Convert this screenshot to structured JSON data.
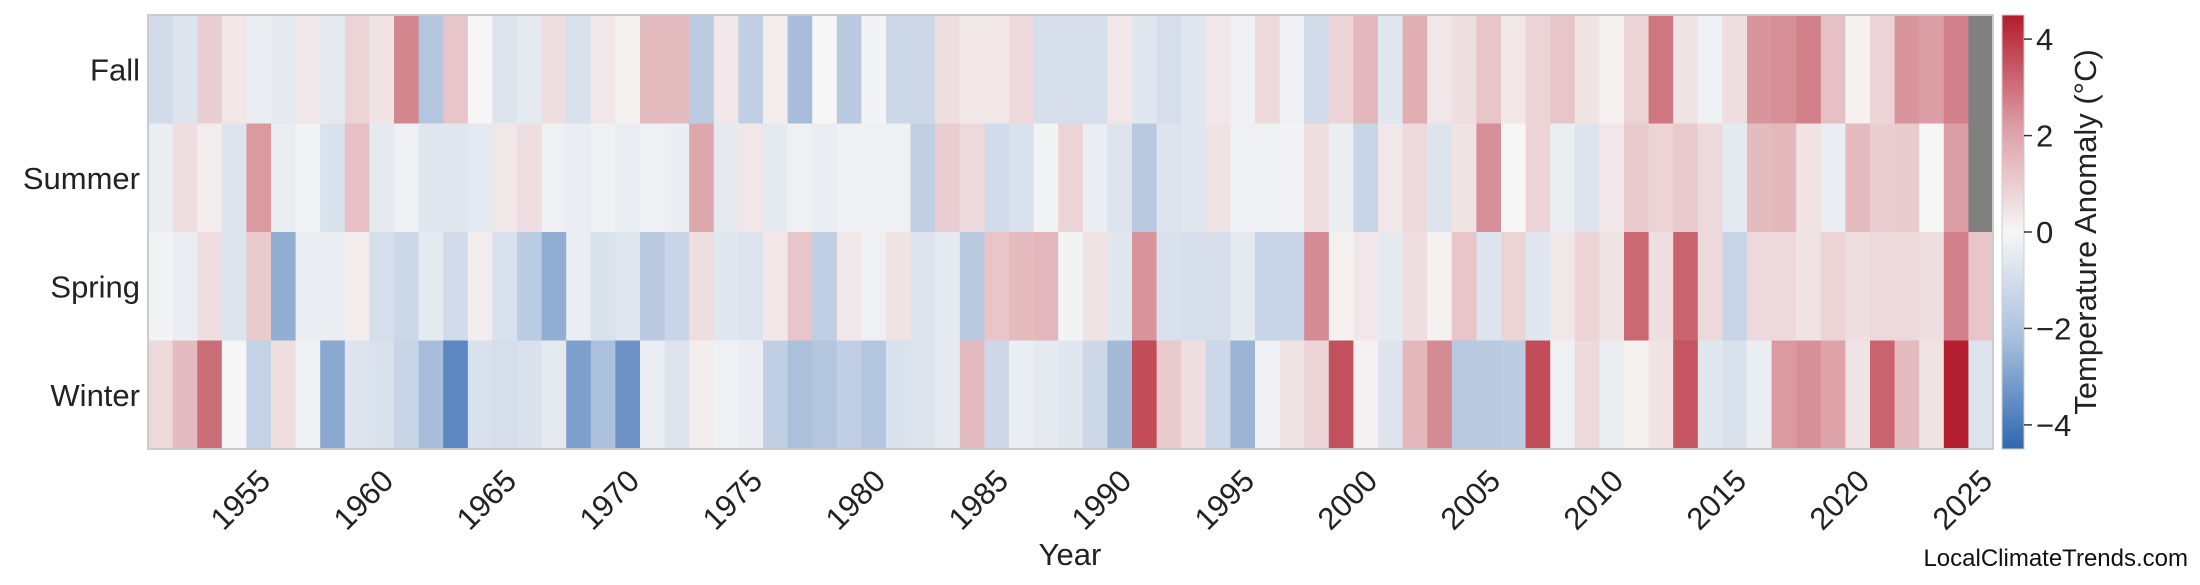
{
  "chart_data": {
    "type": "heatmap",
    "title": "",
    "xlabel": "Year",
    "ylabel": "",
    "x": [
      1951,
      1952,
      1953,
      1954,
      1955,
      1956,
      1957,
      1958,
      1959,
      1960,
      1961,
      1962,
      1963,
      1964,
      1965,
      1966,
      1967,
      1968,
      1969,
      1970,
      1971,
      1972,
      1973,
      1974,
      1975,
      1976,
      1977,
      1978,
      1979,
      1980,
      1981,
      1982,
      1983,
      1984,
      1985,
      1986,
      1987,
      1988,
      1989,
      1990,
      1991,
      1992,
      1993,
      1994,
      1995,
      1996,
      1997,
      1998,
      1999,
      2000,
      2001,
      2002,
      2003,
      2004,
      2005,
      2006,
      2007,
      2008,
      2009,
      2010,
      2011,
      2012,
      2013,
      2014,
      2015,
      2016,
      2017,
      2018,
      2019,
      2020,
      2021,
      2022,
      2023,
      2024,
      2025
    ],
    "x_ticks": [
      "1955",
      "1960",
      "1965",
      "1970",
      "1975",
      "1980",
      "1985",
      "1990",
      "1995",
      "2000",
      "2005",
      "2010",
      "2015",
      "2020",
      "2025"
    ],
    "rows": [
      "Fall",
      "Summer",
      "Spring",
      "Winter"
    ],
    "values": [
      [
        -0.9,
        -0.6,
        0.8,
        0.3,
        -0.3,
        -0.4,
        0.3,
        -0.4,
        0.7,
        0.4,
        2.3,
        -1.6,
        1.0,
        0.0,
        -0.6,
        -0.4,
        0.5,
        -0.7,
        0.3,
        0.1,
        1.2,
        1.2,
        -1.4,
        0.3,
        -1.3,
        0.2,
        -1.9,
        0.0,
        -1.5,
        -0.1,
        -1.0,
        -1.0,
        0.5,
        0.3,
        0.3,
        0.6,
        -0.8,
        -0.8,
        -0.8,
        0.3,
        -0.5,
        -0.8,
        -0.5,
        0.3,
        -0.2,
        0.6,
        -0.2,
        -0.9,
        0.7,
        1.3,
        -0.5,
        1.5,
        0.3,
        0.5,
        1.0,
        0.3,
        0.7,
        1.0,
        0.4,
        0.1,
        0.7,
        2.6,
        0.4,
        -0.2,
        0.5,
        2.0,
        2.1,
        2.4,
        1.1,
        0.1,
        0.7,
        2.0,
        1.8,
        2.4,
        null
      ],
      [
        -0.3,
        0.5,
        0.2,
        -0.6,
        1.9,
        -0.3,
        -0.1,
        -0.7,
        1.1,
        -0.4,
        -0.2,
        -0.5,
        -0.5,
        -0.4,
        0.3,
        0.5,
        -0.2,
        -0.3,
        -0.2,
        -0.3,
        -0.2,
        -0.3,
        1.6,
        -0.4,
        0.3,
        -0.4,
        -0.2,
        -0.3,
        -0.2,
        -0.2,
        -0.2,
        -1.3,
        0.8,
        0.6,
        -0.9,
        -0.7,
        -0.1,
        0.7,
        -0.3,
        -0.6,
        -1.5,
        -0.6,
        -0.5,
        0.4,
        -0.2,
        -0.2,
        -0.1,
        0.5,
        -0.3,
        -1.1,
        0.3,
        0.6,
        -0.6,
        0.4,
        2.1,
        0.0,
        0.7,
        -0.3,
        -0.6,
        0.3,
        0.9,
        0.7,
        0.9,
        0.6,
        -0.4,
        1.2,
        1.3,
        0.4,
        -0.3,
        1.2,
        0.8,
        0.9,
        0.0,
        1.8,
        null
      ],
      [
        -0.1,
        -0.3,
        0.5,
        -0.6,
        0.9,
        -2.4,
        -0.3,
        -0.3,
        0.2,
        -0.8,
        -1.0,
        -0.4,
        -0.9,
        0.2,
        -0.7,
        -1.4,
        -2.4,
        -0.3,
        -0.7,
        -0.5,
        -1.5,
        -1.1,
        0.5,
        -0.5,
        -0.6,
        0.3,
        1.0,
        -1.3,
        0.3,
        -0.2,
        0.4,
        -0.6,
        -0.4,
        -1.5,
        1.0,
        1.2,
        1.3,
        -0.1,
        0.4,
        -0.5,
        2.0,
        -0.7,
        -0.8,
        -0.8,
        -0.4,
        -1.1,
        -1.1,
        2.2,
        0.1,
        0.3,
        -0.4,
        0.5,
        0.1,
        1.0,
        -0.6,
        0.7,
        -0.5,
        0.3,
        0.7,
        0.4,
        2.9,
        0.5,
        3.0,
        0.6,
        -1.1,
        0.6,
        0.6,
        0.4,
        0.7,
        0.5,
        0.6,
        0.6,
        0.5,
        2.4,
        1.0
      ],
      [
        0.6,
        1.2,
        2.8,
        0.0,
        -1.2,
        0.5,
        -0.2,
        -2.6,
        -0.6,
        -0.7,
        -1.1,
        -1.9,
        -3.7,
        -0.7,
        -0.8,
        -0.7,
        -0.4,
        -2.9,
        -1.8,
        -3.3,
        -0.3,
        -0.6,
        0.2,
        -0.2,
        -0.3,
        -1.3,
        -1.8,
        -1.6,
        -1.3,
        -1.6,
        -0.7,
        -0.6,
        -0.4,
        1.2,
        -1.0,
        -0.3,
        -0.4,
        -0.5,
        -1.0,
        -2.0,
        3.5,
        0.9,
        0.5,
        -1.0,
        -2.2,
        -0.2,
        0.4,
        0.7,
        3.4,
        0.1,
        -0.6,
        1.3,
        2.2,
        -1.5,
        -1.5,
        -1.4,
        3.5,
        -0.2,
        0.6,
        -0.3,
        0.1,
        0.4,
        3.3,
        -0.5,
        -0.7,
        -0.3,
        1.9,
        2.1,
        1.7,
        0.4,
        3.0,
        1.2,
        0.4,
        4.4,
        -0.6
      ]
    ],
    "colorbar": {
      "label": "Temperature Anomaly (°C)",
      "ticks": [
        "4",
        "2",
        "0",
        "−2",
        "−4"
      ],
      "min": -4.5,
      "max": 4.5
    },
    "missing_color": "#808080",
    "colors": {
      "low": "#3b6fb5",
      "mid": "#f6f6f6",
      "high": "#b31b2b"
    },
    "grid": false,
    "legend": "colorbar-right"
  },
  "credit": "LocalClimateTrends.com"
}
